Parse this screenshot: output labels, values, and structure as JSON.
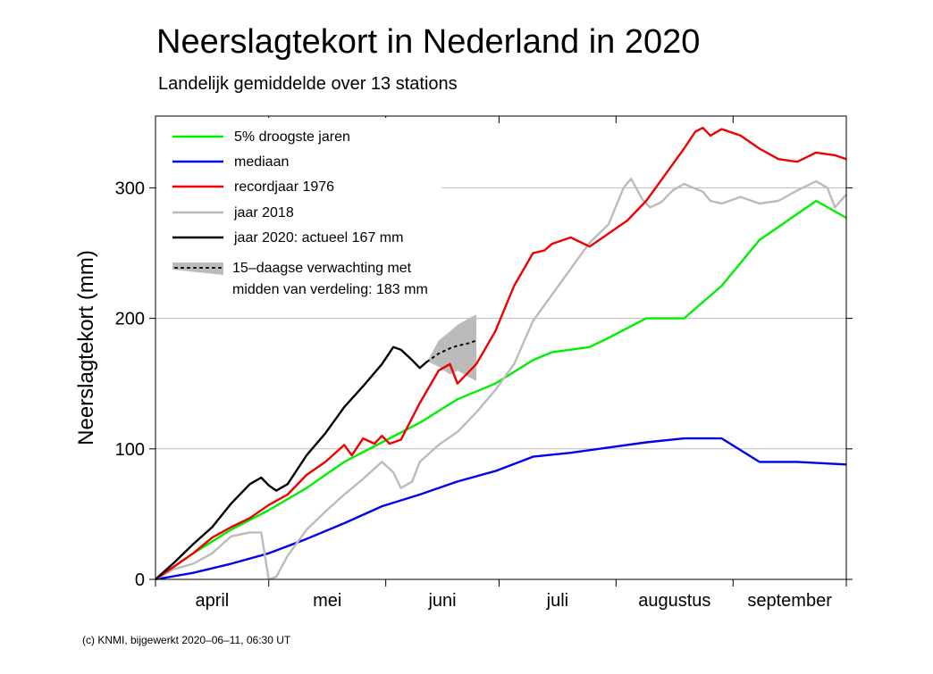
{
  "title": "Neerslagtekort in Nederland in 2020",
  "subtitle": "Landelijk gemiddelde over 13 stations",
  "credit": "(c) KNMI, bijgewerkt 2020–06–11, 06:30 UT",
  "chart_data": {
    "type": "line",
    "title": "Neerslagtekort in Nederland in 2020",
    "subtitle": "Landelijk gemiddelde over 13 stations",
    "xlabel": "",
    "ylabel": "Neerslagtekort (mm)",
    "x_unit": "day since 1 April",
    "xlim": [
      0,
      183
    ],
    "ylim": [
      0,
      355
    ],
    "yticks": [
      0,
      100,
      200,
      300
    ],
    "grid": "horizontal lines at 100, 200, 300",
    "legend_position": "top-left",
    "months": [
      {
        "label": "april",
        "start": 0,
        "end": 30
      },
      {
        "label": "mei",
        "start": 30,
        "end": 61
      },
      {
        "label": "juni",
        "start": 61,
        "end": 91
      },
      {
        "label": "juli",
        "start": 91,
        "end": 122
      },
      {
        "label": "augustus",
        "start": 122,
        "end": 153
      },
      {
        "label": "september",
        "start": 153,
        "end": 183
      }
    ],
    "series": [
      {
        "name": "5% droogste jaren",
        "color": "#00ee00",
        "x": [
          0,
          10,
          20,
          30,
          40,
          50,
          60,
          70,
          80,
          90,
          100,
          105,
          110,
          115,
          120,
          130,
          140,
          150,
          160,
          165,
          170,
          175,
          183
        ],
        "y": [
          0,
          20,
          38,
          53,
          70,
          90,
          105,
          120,
          138,
          150,
          168,
          174,
          176,
          178,
          185,
          200,
          200,
          225,
          260,
          270,
          280,
          290,
          277
        ]
      },
      {
        "name": "mediaan",
        "color": "#0000ee",
        "x": [
          0,
          10,
          20,
          30,
          40,
          50,
          60,
          70,
          80,
          90,
          100,
          110,
          120,
          130,
          140,
          150,
          160,
          170,
          183
        ],
        "y": [
          0,
          5,
          12,
          20,
          31,
          43,
          56,
          65,
          75,
          83,
          94,
          97,
          101,
          105,
          108,
          108,
          90,
          90,
          88
        ]
      },
      {
        "name": "recordjaar 1976",
        "color": "#ee0000",
        "x": [
          0,
          5,
          10,
          15,
          20,
          25,
          30,
          35,
          40,
          45,
          50,
          52,
          55,
          58,
          60,
          62,
          65,
          70,
          75,
          78,
          80,
          85,
          90,
          95,
          100,
          103,
          105,
          110,
          115,
          120,
          125,
          130,
          135,
          140,
          143,
          145,
          147,
          150,
          155,
          160,
          165,
          170,
          175,
          180,
          183
        ],
        "y": [
          0,
          10,
          20,
          32,
          40,
          47,
          57,
          65,
          80,
          90,
          103,
          95,
          108,
          104,
          110,
          104,
          107,
          135,
          160,
          165,
          150,
          165,
          190,
          225,
          250,
          252,
          257,
          262,
          255,
          265,
          275,
          290,
          310,
          330,
          343,
          346,
          340,
          345,
          340,
          330,
          322,
          320,
          327,
          325,
          322
        ]
      },
      {
        "name": "jaar 2018",
        "color": "#bbbbbb",
        "x": [
          0,
          5,
          10,
          15,
          20,
          25,
          28,
          30,
          32,
          35,
          40,
          45,
          50,
          55,
          60,
          63,
          65,
          68,
          70,
          75,
          80,
          85,
          90,
          95,
          100,
          105,
          110,
          115,
          120,
          124,
          126,
          129,
          131,
          134,
          137,
          140,
          145,
          147,
          150,
          155,
          160,
          165,
          170,
          175,
          178,
          180,
          183
        ],
        "y": [
          0,
          8,
          12,
          20,
          33,
          36,
          36,
          0,
          2,
          18,
          38,
          52,
          65,
          77,
          90,
          82,
          70,
          75,
          90,
          103,
          113,
          128,
          145,
          165,
          198,
          218,
          238,
          258,
          272,
          300,
          307,
          291,
          285,
          289,
          298,
          303,
          297,
          290,
          288,
          293,
          288,
          290,
          298,
          305,
          300,
          285,
          295
        ]
      },
      {
        "name": "jaar 2020: actueel 167 mm",
        "color": "#000000",
        "x": [
          0,
          5,
          10,
          15,
          20,
          25,
          28,
          30,
          32,
          35,
          40,
          45,
          50,
          55,
          60,
          63,
          65,
          68,
          70,
          72
        ],
        "y": [
          0,
          13,
          27,
          40,
          58,
          73,
          78,
          72,
          68,
          73,
          95,
          112,
          132,
          148,
          165,
          178,
          176,
          168,
          162,
          167
        ]
      },
      {
        "name": "15–daagse verwachting met midden van verdeling: 183 mm",
        "color": "#bbbbbb",
        "x": [
          72,
          75,
          78,
          80,
          83,
          85
        ],
        "y": [
          167,
          173,
          177,
          179,
          181,
          183
        ],
        "band_upper": [
          167,
          183,
          190,
          195,
          200,
          203
        ],
        "band_lower": [
          167,
          163,
          157,
          160,
          155,
          152
        ]
      }
    ]
  }
}
